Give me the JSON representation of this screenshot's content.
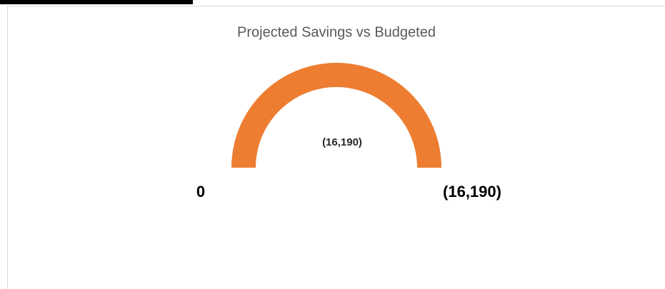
{
  "chart_data": {
    "type": "gauge",
    "title": "Projected Savings vs Budgeted",
    "values": [
      -16190
    ],
    "value_labels": [
      "(16,190)"
    ],
    "ylim": [
      0,
      -16190
    ],
    "yticks": [
      0,
      {
        "value": -16190,
        "label": "(16,190)"
      }
    ],
    "color": "#ed7d31"
  }
}
